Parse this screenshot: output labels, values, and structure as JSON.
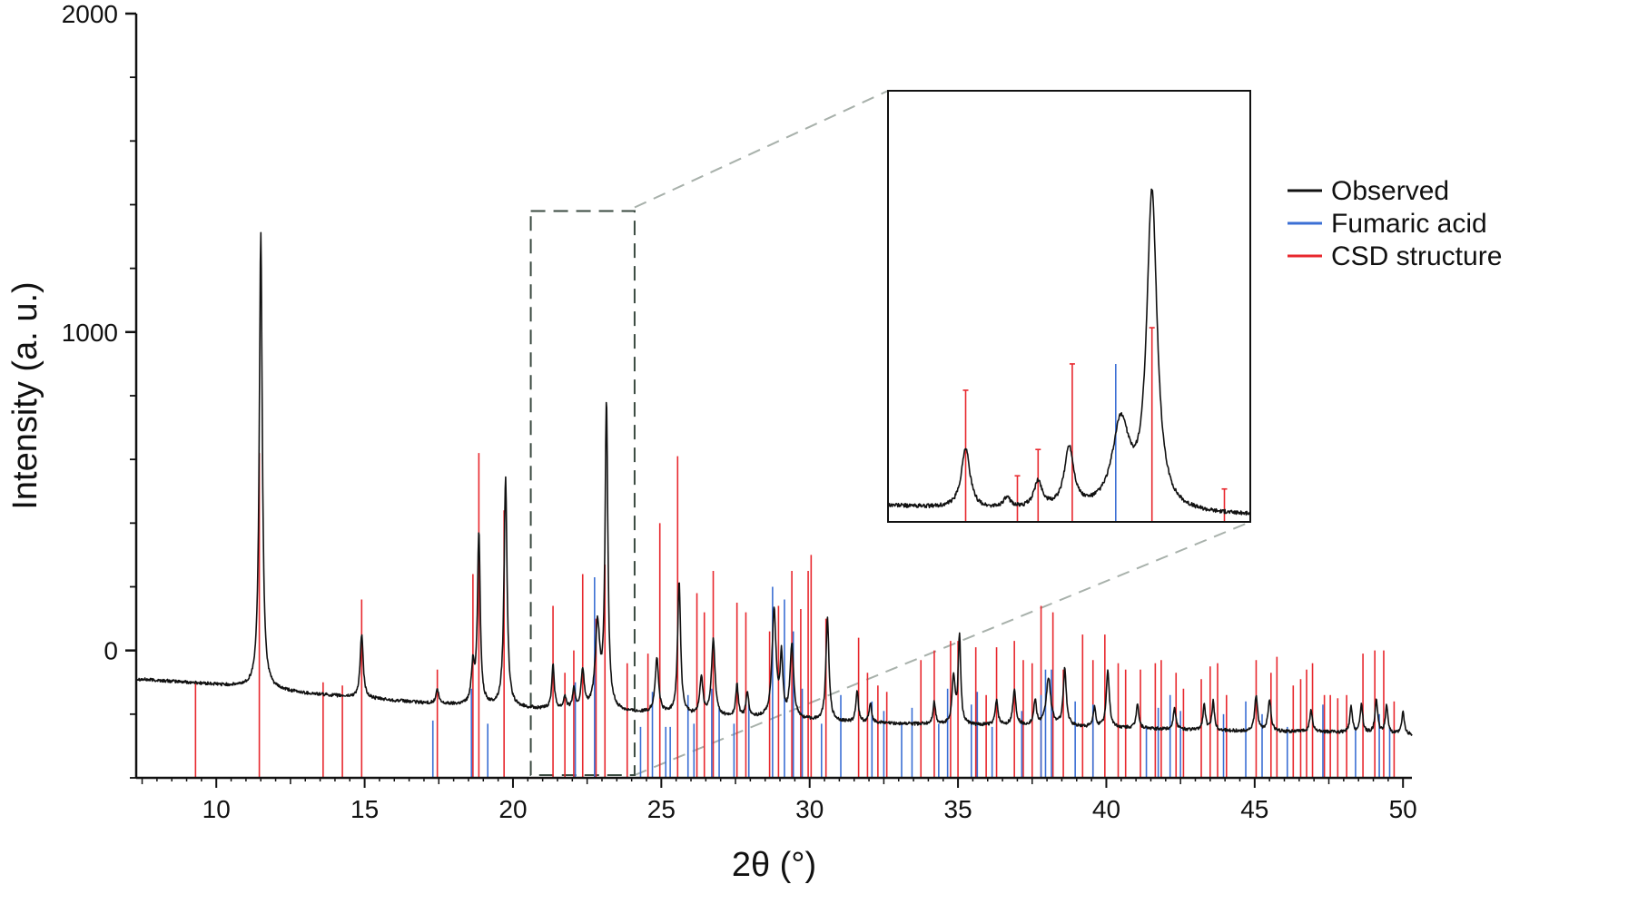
{
  "chart_data": {
    "type": "line",
    "title": "",
    "xlabel": "2θ (°)",
    "ylabel": "Intensity (a. u.)",
    "xlim": [
      7.3,
      50.3
    ],
    "ylim": [
      -400,
      2000
    ],
    "x_ticks": [
      10,
      15,
      20,
      25,
      30,
      35,
      40,
      45,
      50
    ],
    "x_tick_labels": [
      "10",
      "15",
      "20",
      "25",
      "30",
      "35",
      "40",
      "45",
      "50"
    ],
    "y_ticks": [
      0,
      1000,
      2000
    ],
    "y_tick_labels": [
      "0",
      "1000",
      "2000"
    ],
    "grid": false,
    "legend_position": "right",
    "colors": {
      "observed": "#111111",
      "fumaric": "#3b6fd4",
      "csd": "#e8282e",
      "zoom_guide": "#a8b1ab",
      "zoom_box": "#3a4a40"
    },
    "legend": [
      {
        "label": "Observed",
        "color": "#111111"
      },
      {
        "label": "Fumaric acid",
        "color": "#3b6fd4"
      },
      {
        "label": "CSD structure",
        "color": "#e8282e"
      }
    ],
    "baseline": [
      [
        7.3,
        -90
      ],
      [
        9,
        -100
      ],
      [
        11,
        -115
      ],
      [
        13,
        -135
      ],
      [
        15,
        -150
      ],
      [
        17,
        -165
      ],
      [
        19,
        -175
      ],
      [
        21,
        -185
      ],
      [
        23,
        -190
      ],
      [
        25,
        -200
      ],
      [
        27,
        -210
      ],
      [
        29,
        -215
      ],
      [
        31,
        -225
      ],
      [
        33,
        -230
      ],
      [
        35,
        -235
      ],
      [
        37,
        -235
      ],
      [
        39,
        -240
      ],
      [
        41,
        -245
      ],
      [
        43,
        -250
      ],
      [
        45,
        -255
      ],
      [
        47,
        -255
      ],
      [
        49,
        -260
      ],
      [
        50.3,
        -265
      ]
    ],
    "observed_peaks": [
      {
        "x": 11.5,
        "h": 1430,
        "w": 0.06
      },
      {
        "x": 14.9,
        "h": 200,
        "w": 0.06
      },
      {
        "x": 17.45,
        "h": 45,
        "w": 0.05
      },
      {
        "x": 18.65,
        "h": 120,
        "w": 0.06
      },
      {
        "x": 18.85,
        "h": 540,
        "w": 0.055
      },
      {
        "x": 19.75,
        "h": 720,
        "w": 0.06
      },
      {
        "x": 21.35,
        "h": 140,
        "w": 0.05
      },
      {
        "x": 21.75,
        "h": 40,
        "w": 0.05
      },
      {
        "x": 22.05,
        "h": 60,
        "w": 0.05
      },
      {
        "x": 22.35,
        "h": 120,
        "w": 0.06
      },
      {
        "x": 22.85,
        "h": 260,
        "w": 0.09
      },
      {
        "x": 23.15,
        "h": 960,
        "w": 0.055
      },
      {
        "x": 24.85,
        "h": 170,
        "w": 0.07
      },
      {
        "x": 25.6,
        "h": 420,
        "w": 0.06
      },
      {
        "x": 26.35,
        "h": 120,
        "w": 0.06
      },
      {
        "x": 26.75,
        "h": 240,
        "w": 0.07
      },
      {
        "x": 27.55,
        "h": 100,
        "w": 0.05
      },
      {
        "x": 27.9,
        "h": 80,
        "w": 0.05
      },
      {
        "x": 28.8,
        "h": 340,
        "w": 0.08
      },
      {
        "x": 29.05,
        "h": 190,
        "w": 0.05
      },
      {
        "x": 29.4,
        "h": 230,
        "w": 0.07
      },
      {
        "x": 30.6,
        "h": 330,
        "w": 0.06
      },
      {
        "x": 31.6,
        "h": 100,
        "w": 0.05
      },
      {
        "x": 32.05,
        "h": 60,
        "w": 0.05
      },
      {
        "x": 34.2,
        "h": 70,
        "w": 0.05
      },
      {
        "x": 34.85,
        "h": 150,
        "w": 0.06
      },
      {
        "x": 35.05,
        "h": 280,
        "w": 0.05
      },
      {
        "x": 36.3,
        "h": 80,
        "w": 0.05
      },
      {
        "x": 36.9,
        "h": 110,
        "w": 0.06
      },
      {
        "x": 37.6,
        "h": 80,
        "w": 0.05
      },
      {
        "x": 38.05,
        "h": 150,
        "w": 0.09
      },
      {
        "x": 38.6,
        "h": 180,
        "w": 0.06
      },
      {
        "x": 39.6,
        "h": 60,
        "w": 0.05
      },
      {
        "x": 40.05,
        "h": 180,
        "w": 0.06
      },
      {
        "x": 41.05,
        "h": 80,
        "w": 0.05
      },
      {
        "x": 42.3,
        "h": 70,
        "w": 0.05
      },
      {
        "x": 43.3,
        "h": 80,
        "w": 0.05
      },
      {
        "x": 43.6,
        "h": 90,
        "w": 0.05
      },
      {
        "x": 45.05,
        "h": 110,
        "w": 0.06
      },
      {
        "x": 45.5,
        "h": 100,
        "w": 0.06
      },
      {
        "x": 46.9,
        "h": 70,
        "w": 0.05
      },
      {
        "x": 48.25,
        "h": 80,
        "w": 0.05
      },
      {
        "x": 48.6,
        "h": 90,
        "w": 0.05
      },
      {
        "x": 49.1,
        "h": 110,
        "w": 0.05
      },
      {
        "x": 49.45,
        "h": 90,
        "w": 0.05
      },
      {
        "x": 50.0,
        "h": 70,
        "w": 0.05
      }
    ],
    "csd_lines": [
      [
        9.3,
        -100
      ],
      [
        11.45,
        620
      ],
      [
        13.6,
        -100
      ],
      [
        14.25,
        -110
      ],
      [
        14.9,
        160
      ],
      [
        17.45,
        -60
      ],
      [
        18.65,
        240
      ],
      [
        18.85,
        620
      ],
      [
        19.7,
        440
      ],
      [
        21.35,
        140
      ],
      [
        21.75,
        -70
      ],
      [
        22.05,
        0
      ],
      [
        22.35,
        240
      ],
      [
        22.8,
        100
      ],
      [
        23.1,
        270
      ],
      [
        23.85,
        -40
      ],
      [
        24.55,
        -10
      ],
      [
        24.95,
        400
      ],
      [
        25.55,
        610
      ],
      [
        26.2,
        180
      ],
      [
        26.45,
        120
      ],
      [
        26.75,
        250
      ],
      [
        27.55,
        150
      ],
      [
        27.85,
        120
      ],
      [
        28.65,
        60
      ],
      [
        28.95,
        140
      ],
      [
        29.4,
        250
      ],
      [
        29.7,
        130
      ],
      [
        29.95,
        250
      ],
      [
        30.05,
        300
      ],
      [
        30.55,
        100
      ],
      [
        31.65,
        40
      ],
      [
        31.95,
        -70
      ],
      [
        32.3,
        -110
      ],
      [
        32.6,
        -130
      ],
      [
        33.75,
        -30
      ],
      [
        34.2,
        0
      ],
      [
        34.75,
        30
      ],
      [
        35.0,
        30
      ],
      [
        35.6,
        10
      ],
      [
        35.95,
        -140
      ],
      [
        36.3,
        10
      ],
      [
        36.9,
        30
      ],
      [
        37.2,
        -30
      ],
      [
        37.5,
        -40
      ],
      [
        37.8,
        140
      ],
      [
        38.2,
        120
      ],
      [
        38.55,
        -60
      ],
      [
        39.2,
        50
      ],
      [
        39.55,
        -30
      ],
      [
        39.95,
        50
      ],
      [
        40.4,
        -40
      ],
      [
        40.65,
        -60
      ],
      [
        41.15,
        -60
      ],
      [
        41.65,
        -40
      ],
      [
        41.85,
        -30
      ],
      [
        42.35,
        -70
      ],
      [
        42.6,
        -120
      ],
      [
        43.2,
        -90
      ],
      [
        43.5,
        -50
      ],
      [
        43.75,
        -40
      ],
      [
        44.05,
        -140
      ],
      [
        45.05,
        -30
      ],
      [
        45.55,
        -70
      ],
      [
        45.75,
        -20
      ],
      [
        46.3,
        -110
      ],
      [
        46.55,
        -90
      ],
      [
        46.75,
        -60
      ],
      [
        46.95,
        -40
      ],
      [
        47.35,
        -140
      ],
      [
        47.55,
        -140
      ],
      [
        47.8,
        -150
      ],
      [
        48.1,
        -140
      ],
      [
        48.65,
        -10
      ],
      [
        49.05,
        0
      ],
      [
        49.35,
        0
      ],
      [
        49.7,
        -160
      ]
    ],
    "fumaric_lines": [
      [
        17.3,
        -220
      ],
      [
        18.6,
        -120
      ],
      [
        19.15,
        -230
      ],
      [
        22.1,
        -100
      ],
      [
        22.75,
        230
      ],
      [
        24.3,
        -240
      ],
      [
        24.7,
        -130
      ],
      [
        25.15,
        -240
      ],
      [
        25.3,
        -240
      ],
      [
        25.9,
        -140
      ],
      [
        26.1,
        -230
      ],
      [
        26.7,
        -120
      ],
      [
        26.95,
        -180
      ],
      [
        27.45,
        -230
      ],
      [
        27.95,
        -160
      ],
      [
        28.75,
        200
      ],
      [
        29.15,
        160
      ],
      [
        29.45,
        60
      ],
      [
        29.75,
        -120
      ],
      [
        30.4,
        -230
      ],
      [
        31.05,
        -140
      ],
      [
        32.1,
        -160
      ],
      [
        32.5,
        -190
      ],
      [
        33.1,
        -230
      ],
      [
        33.45,
        -180
      ],
      [
        34.35,
        -230
      ],
      [
        34.65,
        -120
      ],
      [
        35.45,
        -170
      ],
      [
        35.65,
        -130
      ],
      [
        36.15,
        -240
      ],
      [
        37.15,
        -190
      ],
      [
        37.8,
        -140
      ],
      [
        37.95,
        -60
      ],
      [
        38.15,
        -60
      ],
      [
        38.95,
        -160
      ],
      [
        39.55,
        -170
      ],
      [
        41.35,
        -240
      ],
      [
        41.75,
        -180
      ],
      [
        42.15,
        -140
      ],
      [
        42.5,
        -190
      ],
      [
        43.95,
        -200
      ],
      [
        44.7,
        -160
      ],
      [
        45.25,
        -200
      ],
      [
        46.1,
        -240
      ],
      [
        47.3,
        -170
      ],
      [
        48.4,
        -240
      ],
      [
        49.2,
        -200
      ],
      [
        49.55,
        -240
      ]
    ]
  },
  "inset": {
    "zoom_range": {
      "x": [
        20.6,
        24.1
      ],
      "y": [
        -400,
        1380
      ]
    },
    "baseline": [
      [
        20.6,
        -170
      ],
      [
        21.5,
        -185
      ],
      [
        22.6,
        -190
      ],
      [
        24.1,
        -200
      ]
    ],
    "observed_peaks": [
      {
        "x": 21.35,
        "h": 185,
        "w": 0.05
      },
      {
        "x": 21.75,
        "h": 30,
        "w": 0.05
      },
      {
        "x": 22.05,
        "h": 80,
        "w": 0.05
      },
      {
        "x": 22.35,
        "h": 185,
        "w": 0.055
      },
      {
        "x": 22.85,
        "h": 260,
        "w": 0.1
      },
      {
        "x": 23.15,
        "h": 960,
        "w": 0.06
      }
    ],
    "csd_lines": [
      [
        21.35,
        180
      ],
      [
        21.85,
        -80
      ],
      [
        22.05,
        0
      ],
      [
        22.38,
        260
      ],
      [
        23.15,
        370
      ],
      [
        23.85,
        -120
      ]
    ],
    "fumaric_lines": [
      [
        22.8,
        260
      ]
    ]
  }
}
